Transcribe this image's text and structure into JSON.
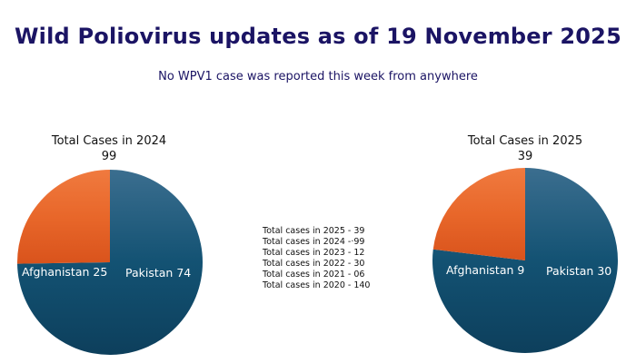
{
  "header": {
    "title": "Wild Poliovirus updates as of 19 November 2025",
    "subtitle": "No WPV1 case was reported this week from anywhere"
  },
  "totals_list": [
    "Total cases in 2025 - 39",
    "Total cases in 2024 -·99",
    "Total cases in 2023 - 12",
    "Total cases in 2022 - 30",
    "Total cases in 2021 - 06",
    "Total cases in 2020 - 140"
  ],
  "colors": {
    "pakistan": "#135273",
    "afghanistan": "#e8672a"
  },
  "chart_data": [
    {
      "type": "pie",
      "title": "Total Cases in 2024",
      "total": "99",
      "slices": [
        {
          "label": "Pakistan 74",
          "value": 74
        },
        {
          "label": "Afghanistan 25",
          "value": 25
        }
      ]
    },
    {
      "type": "pie",
      "title": "Total Cases in 2025",
      "total": "39",
      "slices": [
        {
          "label": "Pakistan 30",
          "value": 30
        },
        {
          "label": "Afghanistan 9",
          "value": 9
        }
      ]
    }
  ]
}
